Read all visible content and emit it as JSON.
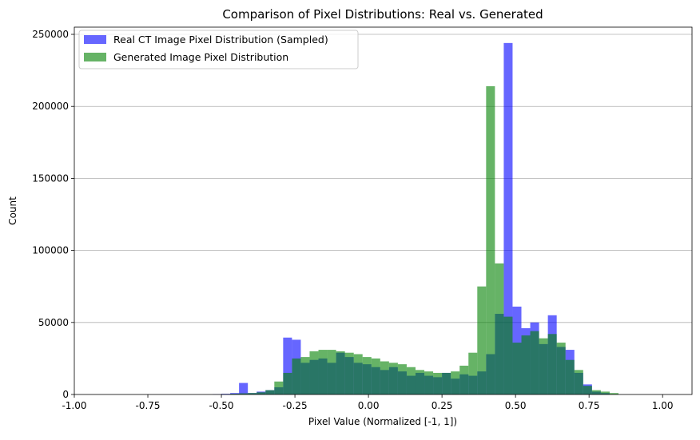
{
  "chart_data": {
    "type": "bar",
    "title": "Comparison of Pixel Distributions: Real vs. Generated",
    "xlabel": "Pixel Value (Normalized [-1, 1])",
    "ylabel": "Count",
    "xlim": [
      -1.0,
      1.1
    ],
    "ylim": [
      0,
      255000
    ],
    "grid": "y",
    "legend_position": "upper left",
    "xticks": [
      "-1.00",
      "-0.75",
      "-0.50",
      "-0.25",
      "0.00",
      "0.25",
      "0.50",
      "0.75",
      "1.00"
    ],
    "xtick_values": [
      -1.0,
      -0.75,
      -0.5,
      -0.25,
      0.0,
      0.25,
      0.5,
      0.75,
      1.0
    ],
    "yticks": [
      "0",
      "50000",
      "100000",
      "150000",
      "200000",
      "250000"
    ],
    "ytick_values": [
      0,
      50000,
      100000,
      150000,
      200000,
      250000
    ],
    "series": [
      {
        "name": "Real CT Image Pixel Distribution (Sampled)",
        "color": "#0000ff",
        "opacity": 0.6,
        "bin_edges": [
          -0.98,
          -0.95,
          -0.92,
          -0.89,
          -0.86,
          -0.83,
          -0.8,
          -0.77,
          -0.74,
          -0.71,
          -0.68,
          -0.65,
          -0.62,
          -0.59,
          -0.56,
          -0.53,
          -0.5,
          -0.47,
          -0.44,
          -0.41,
          -0.38,
          -0.35,
          -0.32,
          -0.29,
          -0.26,
          -0.23,
          -0.2,
          -0.17,
          -0.14,
          -0.11,
          -0.08,
          -0.05,
          -0.02,
          0.01,
          0.04,
          0.07,
          0.1,
          0.13,
          0.16,
          0.19,
          0.22,
          0.25,
          0.28,
          0.31,
          0.34,
          0.37,
          0.4,
          0.43,
          0.46,
          0.49,
          0.52,
          0.55,
          0.58,
          0.61,
          0.64,
          0.67,
          0.7,
          0.73,
          0.76,
          0.79,
          0.82,
          0.85,
          0.88,
          0.91,
          0.94,
          0.97,
          1.0,
          1.03,
          1.06,
          1.09
        ],
        "values": [
          0,
          0,
          0,
          0,
          0,
          0,
          0,
          0,
          0,
          0,
          0,
          0,
          0,
          0,
          0,
          200,
          500,
          1000,
          8000,
          1000,
          2000,
          3000,
          5000,
          39500,
          38000,
          22000,
          24000,
          25000,
          22000,
          29000,
          26000,
          22000,
          21000,
          19000,
          17000,
          19000,
          16000,
          13000,
          15000,
          13000,
          12000,
          15000,
          11000,
          14000,
          13000,
          16000,
          28000,
          56000,
          244000,
          61000,
          46000,
          50000,
          35000,
          55000,
          33000,
          31000,
          15000,
          7000,
          2000,
          1000,
          0,
          0,
          0,
          0,
          0,
          0,
          0,
          0,
          0
        ]
      },
      {
        "name": "Generated Image Pixel Distribution",
        "color": "#008000",
        "opacity": 0.6,
        "bin_edges": [
          -0.5,
          -0.47,
          -0.44,
          -0.41,
          -0.38,
          -0.35,
          -0.32,
          -0.29,
          -0.26,
          -0.23,
          -0.2,
          -0.17,
          -0.14,
          -0.11,
          -0.08,
          -0.05,
          -0.02,
          0.01,
          0.04,
          0.07,
          0.1,
          0.13,
          0.16,
          0.19,
          0.22,
          0.25,
          0.28,
          0.31,
          0.34,
          0.37,
          0.4,
          0.43,
          0.46,
          0.49,
          0.52,
          0.55,
          0.58,
          0.61,
          0.64,
          0.67,
          0.7,
          0.73,
          0.76,
          0.79,
          0.82,
          0.85
        ],
        "values": [
          200,
          500,
          800,
          1000,
          1500,
          3000,
          9000,
          15000,
          25000,
          26000,
          30000,
          31000,
          31000,
          30000,
          29000,
          28000,
          26000,
          25000,
          23000,
          22000,
          21000,
          19000,
          17000,
          16000,
          15000,
          15000,
          16000,
          20000,
          29000,
          75000,
          214000,
          91000,
          54000,
          36000,
          41000,
          44000,
          39000,
          42000,
          36000,
          24000,
          17000,
          6000,
          3000,
          2000,
          1000
        ]
      }
    ]
  }
}
